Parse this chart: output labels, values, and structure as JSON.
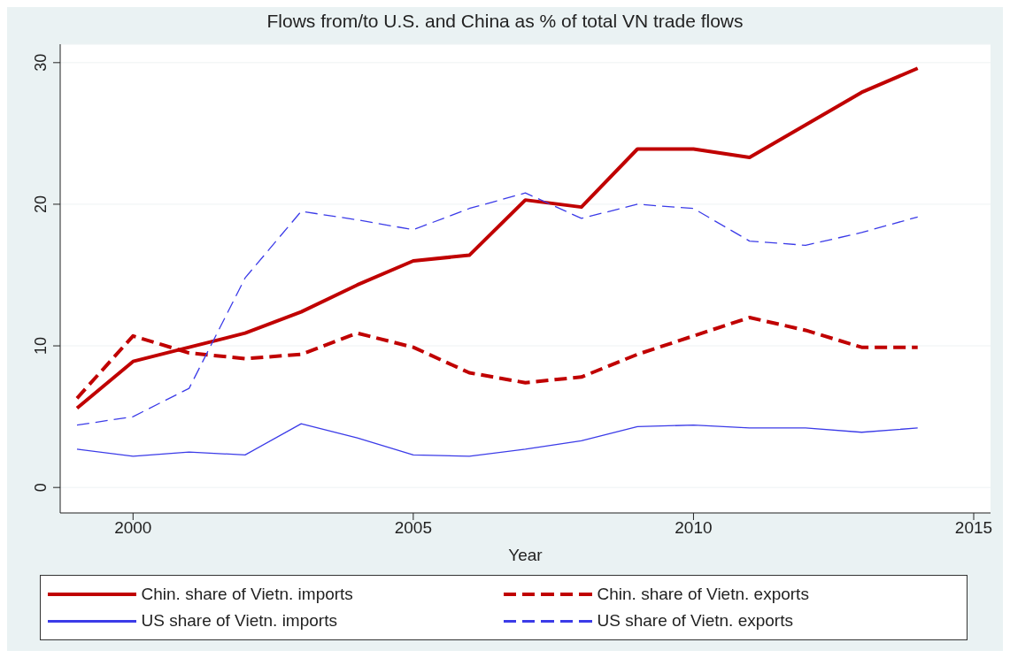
{
  "chart_data": {
    "type": "line",
    "title": "Flows from/to U.S. and China as % of total VN trade flows",
    "xlabel": "Year",
    "x": [
      1999,
      2000,
      2001,
      2002,
      2003,
      2004,
      2005,
      2006,
      2007,
      2008,
      2009,
      2010,
      2011,
      2012,
      2013,
      2014
    ],
    "series": [
      {
        "name": "Chin. share of Vietn. imports",
        "color": "#c00000",
        "line_style": "solid",
        "values": [
          5.6,
          8.9,
          9.9,
          10.9,
          12.4,
          14.3,
          16.0,
          16.4,
          20.3,
          19.8,
          23.9,
          23.9,
          23.3,
          25.6,
          27.9,
          29.6
        ]
      },
      {
        "name": "Chin. share of Vietn. exports",
        "color": "#c00000",
        "line_style": "dashed",
        "values": [
          6.3,
          10.7,
          9.5,
          9.1,
          9.4,
          10.9,
          9.9,
          8.1,
          7.4,
          7.8,
          9.4,
          10.7,
          12.0,
          11.1,
          9.9,
          9.9
        ]
      },
      {
        "name": "US share of Vietn. imports",
        "color": "#3b3be8",
        "line_style": "solid",
        "values": [
          2.7,
          2.2,
          2.5,
          2.3,
          4.5,
          3.5,
          2.3,
          2.2,
          2.7,
          3.3,
          4.3,
          4.4,
          4.2,
          4.2,
          3.9,
          4.2
        ]
      },
      {
        "name": "US share of Vietn. exports",
        "color": "#3b3be8",
        "line_style": "dashed",
        "values": [
          4.4,
          5.0,
          7.0,
          14.8,
          19.5,
          18.9,
          18.2,
          19.7,
          20.8,
          19.0,
          20.0,
          19.7,
          17.4,
          17.1,
          18.0,
          19.1
        ]
      }
    ],
    "xlim": [
      1998.7,
      2015.3
    ],
    "xticks": [
      2000,
      2005,
      2010,
      2015
    ],
    "ylim": [
      -1.8,
      31.3
    ],
    "yticks": [
      0,
      10,
      20,
      30
    ],
    "grid": "y",
    "legend": "bottom",
    "marker": "none"
  }
}
